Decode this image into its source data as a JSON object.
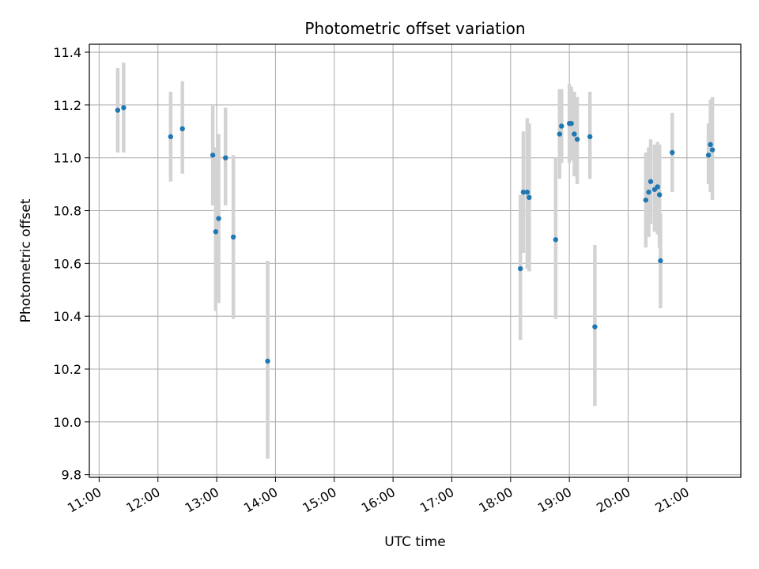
{
  "chart_data": {
    "type": "scatter",
    "title": "Photometric offset variation",
    "xlabel": "UTC time",
    "ylabel": "Photometric offset",
    "xlim": [
      "10:50",
      "21:55"
    ],
    "ylim": [
      9.79,
      11.43
    ],
    "x_ticks": [
      "11:00",
      "12:00",
      "13:00",
      "14:00",
      "15:00",
      "16:00",
      "17:00",
      "18:00",
      "19:00",
      "20:00",
      "21:00"
    ],
    "y_ticks": [
      "9.8",
      "10.0",
      "10.2",
      "10.4",
      "10.6",
      "10.8",
      "11.0",
      "11.2",
      "11.4"
    ],
    "grid": true,
    "colors": {
      "points": "#1f77b4",
      "errorbars": "#d3d3d3",
      "grid": "#b0b0b0"
    },
    "series": [
      {
        "points": [
          {
            "x": "11:19",
            "y": 11.18,
            "err_low": 11.02,
            "err_high": 11.34
          },
          {
            "x": "11:25",
            "y": 11.19,
            "err_low": 11.02,
            "err_high": 11.36
          },
          {
            "x": "12:13",
            "y": 11.08,
            "err_low": 10.91,
            "err_high": 11.25
          },
          {
            "x": "12:25",
            "y": 11.11,
            "err_low": 10.94,
            "err_high": 11.29
          },
          {
            "x": "12:56",
            "y": 11.01,
            "err_low": 10.82,
            "err_high": 11.2
          },
          {
            "x": "12:59",
            "y": 10.72,
            "err_low": 10.42,
            "err_high": 11.04
          },
          {
            "x": "13:02",
            "y": 10.77,
            "err_low": 10.45,
            "err_high": 11.09
          },
          {
            "x": "13:09",
            "y": 11.0,
            "err_low": 10.82,
            "err_high": 11.19
          },
          {
            "x": "13:17",
            "y": 10.7,
            "err_low": 10.39,
            "err_high": 11.01
          },
          {
            "x": "13:52",
            "y": 10.23,
            "err_low": 9.86,
            "err_high": 10.61
          },
          {
            "x": "18:10",
            "y": 10.58,
            "err_low": 10.31,
            "err_high": 10.86
          },
          {
            "x": "18:13",
            "y": 10.87,
            "err_low": 10.64,
            "err_high": 11.1
          },
          {
            "x": "18:17",
            "y": 10.87,
            "err_low": 10.58,
            "err_high": 11.15
          },
          {
            "x": "18:19",
            "y": 10.85,
            "err_low": 10.57,
            "err_high": 11.13
          },
          {
            "x": "18:46",
            "y": 10.69,
            "err_low": 10.39,
            "err_high": 11.0
          },
          {
            "x": "18:50",
            "y": 11.09,
            "err_low": 10.92,
            "err_high": 11.26
          },
          {
            "x": "18:52",
            "y": 11.12,
            "err_low": 10.98,
            "err_high": 11.26
          },
          {
            "x": "19:00",
            "y": 11.13,
            "err_low": 10.98,
            "err_high": 11.28
          },
          {
            "x": "19:02",
            "y": 11.13,
            "err_low": 10.99,
            "err_high": 11.27
          },
          {
            "x": "19:05",
            "y": 11.09,
            "err_low": 10.93,
            "err_high": 11.25
          },
          {
            "x": "19:08",
            "y": 11.07,
            "err_low": 10.9,
            "err_high": 11.23
          },
          {
            "x": "19:21",
            "y": 11.08,
            "err_low": 10.92,
            "err_high": 11.25
          },
          {
            "x": "19:26",
            "y": 10.36,
            "err_low": 10.06,
            "err_high": 10.67
          },
          {
            "x": "20:18",
            "y": 10.84,
            "err_low": 10.66,
            "err_high": 11.02
          },
          {
            "x": "20:21",
            "y": 10.87,
            "err_low": 10.7,
            "err_high": 11.04
          },
          {
            "x": "20:23",
            "y": 10.91,
            "err_low": 10.75,
            "err_high": 11.07
          },
          {
            "x": "20:27",
            "y": 10.88,
            "err_low": 10.72,
            "err_high": 11.05
          },
          {
            "x": "20:30",
            "y": 10.89,
            "err_low": 10.71,
            "err_high": 11.06
          },
          {
            "x": "20:32",
            "y": 10.86,
            "err_low": 10.66,
            "err_high": 11.05
          },
          {
            "x": "20:33",
            "y": 10.61,
            "err_low": 10.43,
            "err_high": 10.79
          },
          {
            "x": "20:45",
            "y": 11.02,
            "err_low": 10.87,
            "err_high": 11.17
          },
          {
            "x": "21:22",
            "y": 11.01,
            "err_low": 10.9,
            "err_high": 11.13
          },
          {
            "x": "21:24",
            "y": 11.05,
            "err_low": 10.87,
            "err_high": 11.22
          },
          {
            "x": "21:26",
            "y": 11.03,
            "err_low": 10.84,
            "err_high": 11.23
          }
        ]
      }
    ]
  }
}
